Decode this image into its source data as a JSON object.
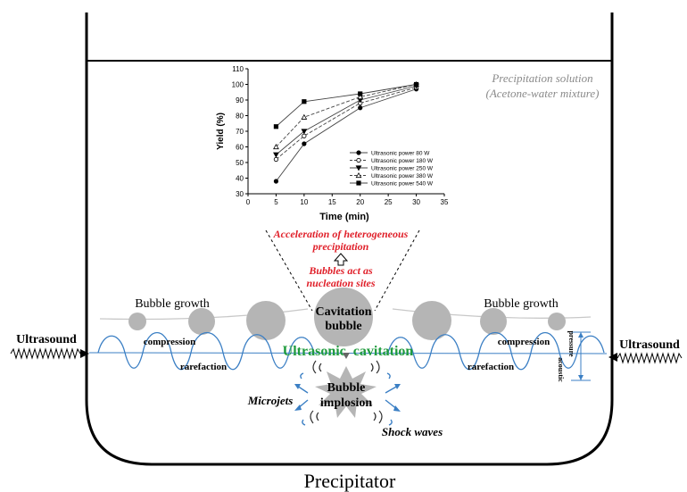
{
  "vessel": {
    "label": "Precipitator",
    "solution_label_line1": "Precipitation solution",
    "solution_label_line2": "(Acetone-water mixture)"
  },
  "ultrasound": {
    "left_label": "Ultrasound",
    "right_label": "Ultrasound",
    "compression_left": "compression",
    "compression_right": "compression",
    "rarefaction_left": "rarefaction",
    "rarefaction_right": "rarefaction",
    "cavitation_label": "Ultrasonic  cavitation",
    "acoustic_label": "acoustic",
    "pressure_label": "pressure"
  },
  "bubbles": {
    "growth_left": "Bubble growth",
    "growth_right": "Bubble growth",
    "cavitation_bubble_line1": "Cavitation",
    "cavitation_bubble_line2": "bubble",
    "implosion_line1": "Bubble",
    "implosion_line2": "implosion",
    "microjets": "Microjets",
    "shock_waves": "Shock waves"
  },
  "annotations": {
    "acceleration_line1": "Acceleration of heterogeneous",
    "acceleration_line2": "precipitation",
    "nucleation_line1": "Bubbles act as",
    "nucleation_line2": "nucleation sites"
  },
  "colors": {
    "red_text": "#e0202a",
    "cavitation_green": "#1e9b3c",
    "wave_blue": "#3b7fc4",
    "bubble_gray": "#b5b5b5"
  },
  "chart_data": {
    "type": "line",
    "xlabel": "Time (min)",
    "ylabel": "Yield (%)",
    "xlim": [
      0,
      35
    ],
    "ylim": [
      30,
      110
    ],
    "xticks": [
      0,
      5,
      10,
      15,
      20,
      25,
      30,
      35
    ],
    "yticks": [
      30,
      40,
      50,
      60,
      70,
      80,
      90,
      100,
      110
    ],
    "x": [
      5,
      10,
      20,
      30
    ],
    "series": [
      {
        "name": "Ultrasonic power 80 W",
        "marker": "filled-circle",
        "dash": "solid",
        "values": [
          38,
          62,
          85,
          97
        ]
      },
      {
        "name": "Ultrasonic power 180 W",
        "marker": "open-circle",
        "dash": "dashed",
        "values": [
          52,
          67,
          88,
          98
        ]
      },
      {
        "name": "Ultrasonic power 250 W",
        "marker": "filled-triangle-down",
        "dash": "solid",
        "values": [
          55,
          70,
          90,
          99
        ]
      },
      {
        "name": "Ultrasonic power 380 W",
        "marker": "open-triangle-up",
        "dash": "dashed",
        "values": [
          60,
          79,
          92,
          100
        ]
      },
      {
        "name": "Ultrasonic power 540 W",
        "marker": "filled-square",
        "dash": "solid",
        "values": [
          73,
          89,
          94,
          100
        ]
      }
    ],
    "legend_position": "lower-right",
    "grid": false
  }
}
